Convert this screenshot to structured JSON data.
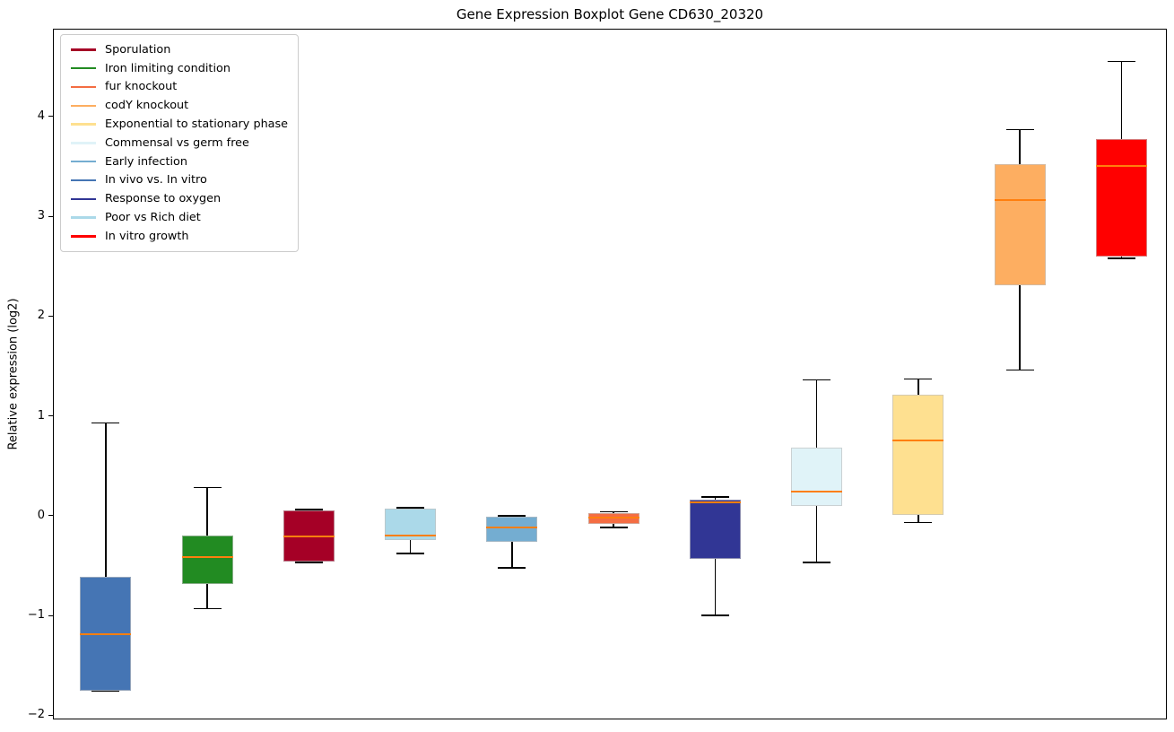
{
  "chart_data": {
    "type": "boxplot",
    "title": "Gene Expression Boxplot Gene CD630_20320",
    "xlabel": "",
    "ylabel": "Relative expression (log2)",
    "ylim": [
      -2.05,
      4.87
    ],
    "yticks": [
      -2,
      -1,
      0,
      1,
      2,
      3,
      4
    ],
    "xticklabels": [],
    "grid": false,
    "legend_position": "upper-left",
    "median_color": "#ff7f0e",
    "whisker_color": "#000000",
    "legend": [
      {
        "label": "Sporulation",
        "color": "#A50026"
      },
      {
        "label": "Iron limiting condition",
        "color": "#228B22"
      },
      {
        "label": "fur knockout",
        "color": "#F46D43"
      },
      {
        "label": "codY knockout",
        "color": "#FDAE61"
      },
      {
        "label": "Exponential to stationary phase",
        "color": "#FEE090"
      },
      {
        "label": "Commensal vs germ free",
        "color": "#E0F3F8"
      },
      {
        "label": "Early infection",
        "color": "#74ADD1"
      },
      {
        "label": "In vivo vs. In vitro",
        "color": "#4575B4"
      },
      {
        "label": "Response to oxygen",
        "color": "#313695"
      },
      {
        "label": "Poor vs Rich diet",
        "color": "#ABD9E9"
      },
      {
        "label": "In vitro growth",
        "color": "#FF0000"
      }
    ],
    "boxes": [
      {
        "label": "In vivo vs. In vitro",
        "color": "#4575B4",
        "whislo": -1.76,
        "q1": -1.75,
        "med": -1.19,
        "q3": -0.61,
        "whishi": 0.93
      },
      {
        "label": "Iron limiting condition",
        "color": "#228B22",
        "whislo": -0.93,
        "q1": -0.68,
        "med": -0.41,
        "q3": -0.2,
        "whishi": 0.28
      },
      {
        "label": "Sporulation",
        "color": "#A50026",
        "whislo": -0.47,
        "q1": -0.46,
        "med": -0.21,
        "q3": 0.05,
        "whishi": 0.06
      },
      {
        "label": "Poor vs Rich diet",
        "color": "#ABD9E9",
        "whislo": -0.38,
        "q1": -0.24,
        "med": -0.2,
        "q3": 0.07,
        "whishi": 0.08
      },
      {
        "label": "Early infection",
        "color": "#74ADD1",
        "whislo": -0.52,
        "q1": -0.26,
        "med": -0.12,
        "q3": -0.01,
        "whishi": 0.0
      },
      {
        "label": "fur knockout",
        "color": "#F46D43",
        "whislo": -0.12,
        "q1": -0.08,
        "med": -0.02,
        "q3": 0.03,
        "whishi": 0.04
      },
      {
        "label": "Response to oxygen",
        "color": "#313695",
        "whislo": -1.0,
        "q1": -0.43,
        "med": 0.13,
        "q3": 0.16,
        "whishi": 0.19
      },
      {
        "label": "Commensal vs germ free",
        "color": "#E0F3F8",
        "whislo": -0.47,
        "q1": 0.1,
        "med": 0.24,
        "q3": 0.68,
        "whishi": 1.36
      },
      {
        "label": "Exponential to stationary phase",
        "color": "#FEE090",
        "whislo": -0.07,
        "q1": 0.01,
        "med": 0.75,
        "q3": 1.21,
        "whishi": 1.37
      },
      {
        "label": "codY knockout",
        "color": "#FDAE61",
        "whislo": 1.46,
        "q1": 2.31,
        "med": 3.16,
        "q3": 3.52,
        "whishi": 3.87
      },
      {
        "label": "In vitro growth",
        "color": "#FF0000",
        "whislo": 2.58,
        "q1": 2.6,
        "med": 3.5,
        "q3": 3.77,
        "whishi": 4.55
      }
    ]
  }
}
